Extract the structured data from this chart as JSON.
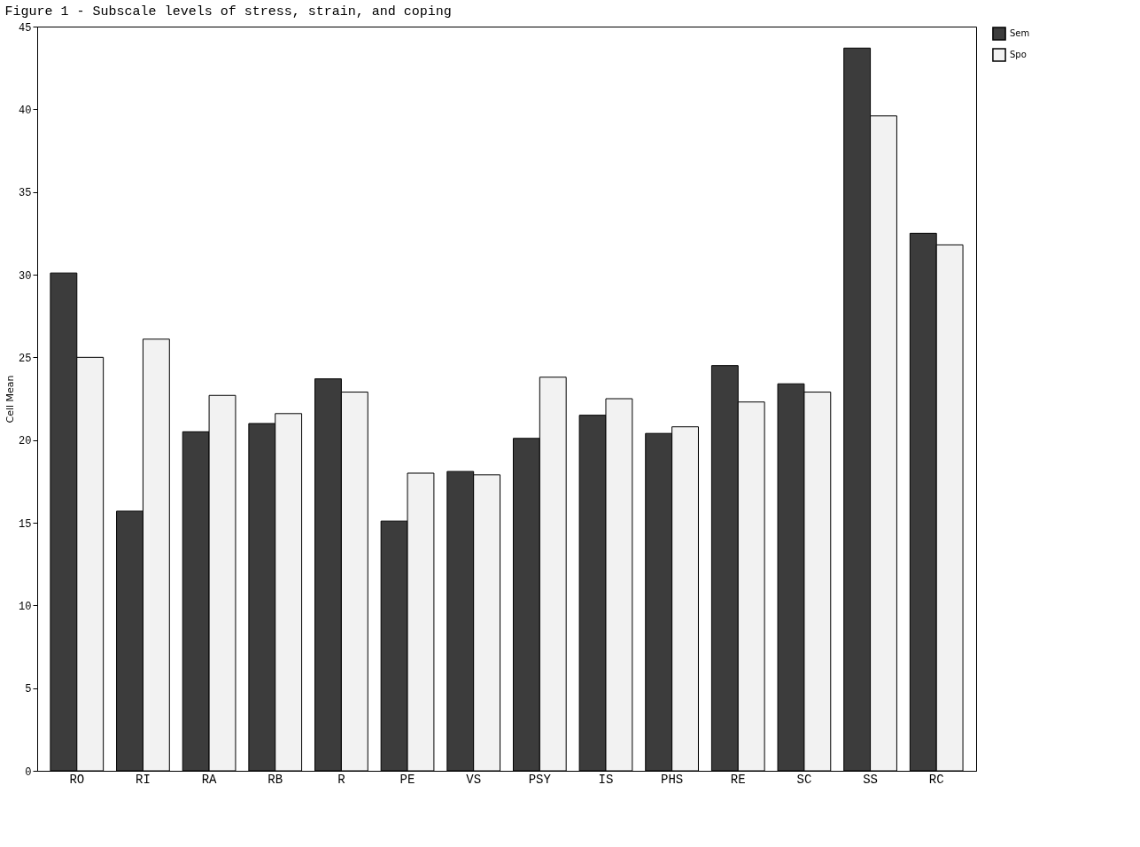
{
  "chart_data": {
    "type": "bar",
    "title": "Figure 1 - Subscale levels of stress, strain, and coping",
    "ylabel": "Cell Mean",
    "categories": [
      "RO",
      "RI",
      "RA",
      "RB",
      "R",
      "PE",
      "VS",
      "PSY",
      "IS",
      "PHS",
      "RE",
      "SC",
      "SS",
      "RC"
    ],
    "series": [
      {
        "name": "Sem",
        "color": "#3c3c3c",
        "values": [
          30.1,
          15.7,
          20.5,
          21.0,
          23.7,
          15.1,
          18.1,
          20.1,
          21.5,
          20.4,
          24.5,
          23.4,
          43.7,
          32.5
        ]
      },
      {
        "name": "Spo",
        "color": "#f2f2f2",
        "values": [
          25.0,
          26.1,
          22.7,
          21.6,
          22.9,
          18.0,
          17.9,
          23.8,
          22.5,
          20.8,
          22.3,
          22.9,
          39.6,
          31.8
        ]
      }
    ],
    "ylim": [
      0,
      45
    ],
    "yticks": [
      0,
      5,
      10,
      15,
      20,
      25,
      30,
      35,
      40,
      45
    ],
    "grid": false,
    "legend": "right"
  }
}
